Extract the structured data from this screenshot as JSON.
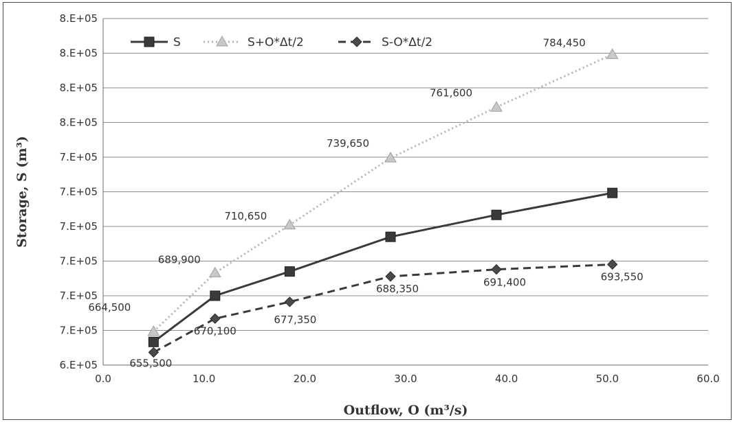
{
  "chart_data": {
    "type": "line",
    "title": "",
    "xlabel": "Outflow, O (m³/s)",
    "ylabel": "Storage, S (m³)",
    "xlim": [
      0,
      60
    ],
    "ylim": [
      650000,
      800000
    ],
    "x_ticks": [
      0,
      10,
      20,
      30,
      40,
      50,
      60
    ],
    "x_tick_labels": [
      "0.0",
      "10.0",
      "20.0",
      "30.0",
      "40.0",
      "50.0",
      "60.0"
    ],
    "y_ticks": [
      650000,
      665000,
      680000,
      695000,
      710000,
      725000,
      740000,
      755000,
      770000,
      785000,
      800000
    ],
    "y_tick_labels": [
      "6.E+05",
      "7.E+05",
      "7.E+05",
      "7.E+05",
      "7.E+05",
      "7.E+05",
      "7.E+05",
      "8.E+05",
      "8.E+05",
      "8.E+05",
      "8.E+05"
    ],
    "grid": true,
    "legend_position": "top-left",
    "x": [
      5.0,
      11.1,
      18.5,
      28.5,
      39.0,
      50.5
    ],
    "series": [
      {
        "name": "S",
        "values": [
          660000,
          680000,
          690500,
          705500,
          715000,
          724500
        ],
        "color": "#3a3a3a",
        "marker": "square",
        "line": "solid",
        "labels": []
      },
      {
        "name": "S+O*Δt/2",
        "values": [
          664500,
          689900,
          710650,
          739650,
          761600,
          784450
        ],
        "color": "#b4b4b4",
        "marker": "triangle",
        "line": "dotted",
        "labels": [
          "664,500",
          "689,900",
          "710,650",
          "739,650",
          "761,600",
          "784,450"
        ]
      },
      {
        "name": "S-O*Δt/2",
        "values": [
          655500,
          670100,
          677350,
          688350,
          691400,
          693550
        ],
        "color": "#3a3a3a",
        "marker": "diamond",
        "line": "dashed",
        "labels": [
          "655,500",
          "670,100",
          "677,350",
          "688,350",
          "691,400",
          "693,550"
        ]
      }
    ]
  }
}
